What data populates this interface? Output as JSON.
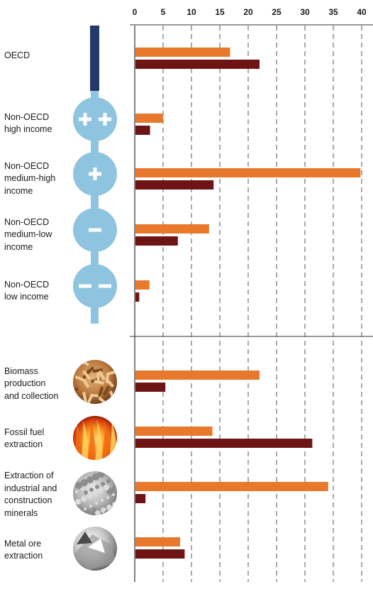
{
  "colors": {
    "orange": "#e8792c",
    "maroon": "#6e1414",
    "oecd_navy": "#233a66",
    "income_blue": "#8ec4df",
    "grid": "#555555"
  },
  "chart_data": {
    "type": "bar",
    "orientation": "horizontal",
    "xlim": [
      0,
      40
    ],
    "xticks": [
      "0",
      "5",
      "10",
      "15",
      "20",
      "25",
      "30",
      "35",
      "40"
    ],
    "grid": "vertical dashed",
    "legend": "none",
    "categories": [
      "OECD",
      "Non-OECD high income",
      "Non-OECD medium-high income",
      "Non-OECD medium-low income",
      "Non-OECD low income",
      "Biomass production and collection",
      "Fossil fuel extraction",
      "Extraction of industrial and construction minerals",
      "Metal ore extraction"
    ],
    "category_lines": [
      [
        "OECD"
      ],
      [
        "Non-OECD",
        "high income"
      ],
      [
        "Non-OECD",
        "medium-high",
        "income"
      ],
      [
        "Non-OECD",
        "medium-low",
        "income"
      ],
      [
        "Non-OECD",
        "low income"
      ],
      [
        "Biomass",
        "production",
        "and collection"
      ],
      [
        "Fossil fuel",
        "extraction"
      ],
      [
        "Extraction of",
        "industrial and",
        "construction",
        "minerals"
      ],
      [
        "Metal ore",
        "extraction"
      ]
    ],
    "icons": [
      "oecd-bar-icon",
      "income-plus-plus-icon",
      "income-plus-icon",
      "income-minus-icon",
      "income-minus-minus-icon",
      "wood-chips-photo",
      "fire-photo",
      "gravel-photo",
      "metal-ore-photo"
    ],
    "series": [
      {
        "color": "#e8792c",
        "values": [
          16.8,
          5.0,
          39.8,
          13.1,
          2.6,
          22.0,
          13.7,
          34.1,
          8.0
        ]
      },
      {
        "color": "#6e1414",
        "values": [
          22.0,
          2.7,
          13.9,
          7.6,
          0.8,
          5.4,
          31.3,
          1.9,
          8.8
        ]
      }
    ]
  }
}
